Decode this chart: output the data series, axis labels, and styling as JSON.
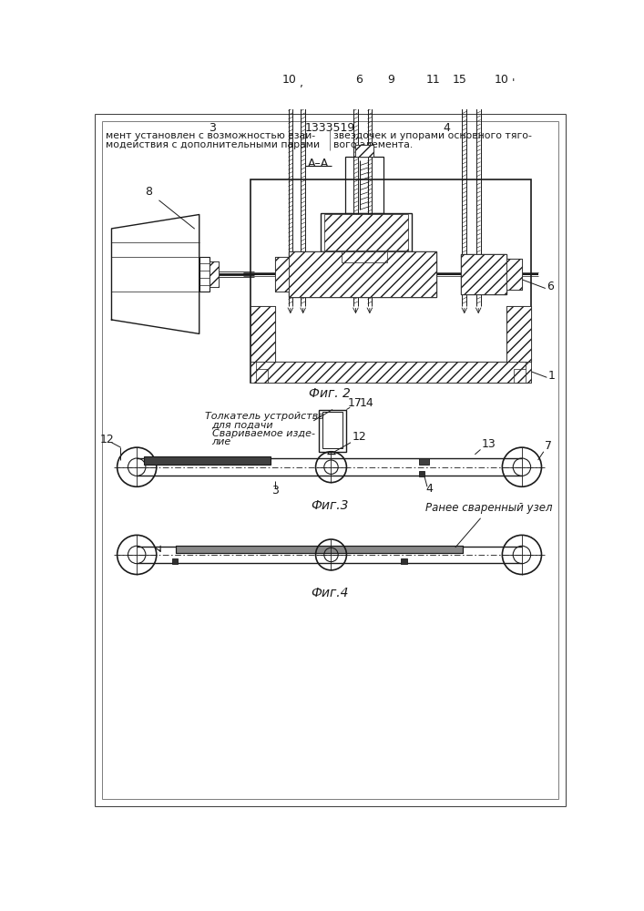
{
  "bg_color": "#ffffff",
  "line_color": "#1a1a1a",
  "page_num_left": "3",
  "page_num_center": "1333519",
  "page_num_right": "4",
  "text_left_line1": "мент установлен с возможностью взаи-",
  "text_left_line2": "модействия с дополнительными парами",
  "text_right_line1": "звездочек и упорами основного тяго-",
  "text_right_line2": "вого элемента.",
  "fig2_label": "Фиг. 2",
  "fig3_label": "Фиг.3",
  "fig4_label": "Фиг.4",
  "label_8": "8",
  "label_10a": "10",
  "label_6a": "6",
  "label_9": "9",
  "label_11": "11",
  "label_15": "15",
  "label_10b": "10",
  "label_6b": "6",
  "label_1": "1",
  "label_12a": "12",
  "label_3": "3",
  "label_17": "17",
  "label_14": "14",
  "label_12b": "12",
  "label_13": "13",
  "label_7": "7",
  "label_4": "4",
  "text_tolkatel": "Толкатель устройства",
  "text_dlya_podachi": "для подачи",
  "text_svarivaemoe": "Свариваемое изде-",
  "text_lie": "лие",
  "text_ranee": "Ранее сваренный узел"
}
